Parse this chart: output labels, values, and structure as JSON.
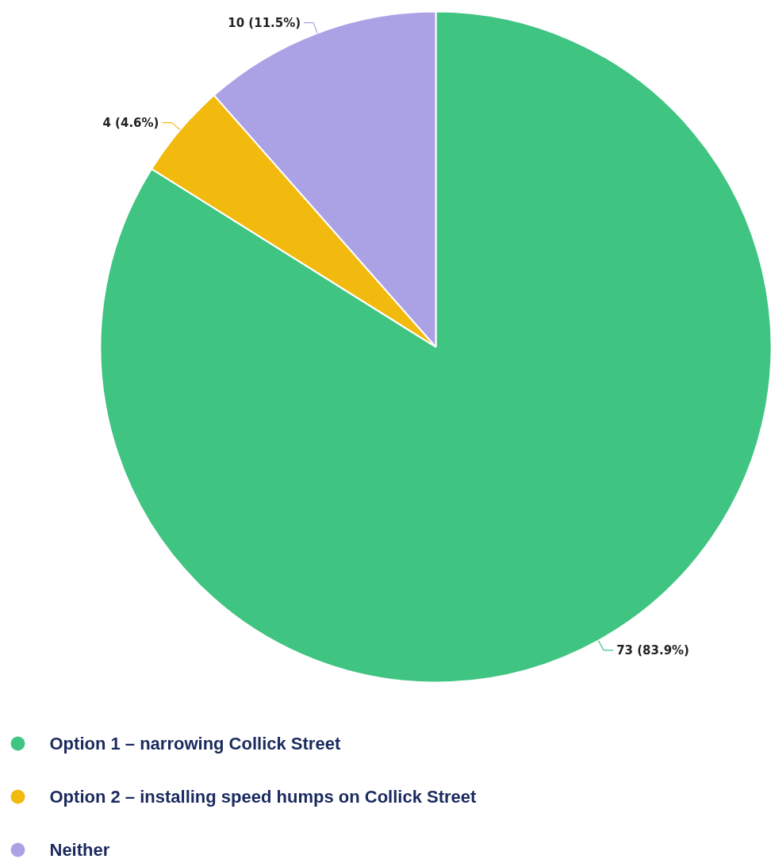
{
  "chart_data": {
    "type": "pie",
    "categories": [
      "Option 1 – narrowing Collick Street",
      "Option 2 – installing speed humps on Collick Street",
      "Neither"
    ],
    "values": [
      73,
      4,
      10
    ],
    "colors": [
      "#40c482",
      "#f2b90f",
      "#aba2e6"
    ],
    "value_labels": [
      "73 (83.9%)",
      "4 (4.6%)",
      "10 (11.5%)"
    ],
    "legend": "bottom"
  }
}
